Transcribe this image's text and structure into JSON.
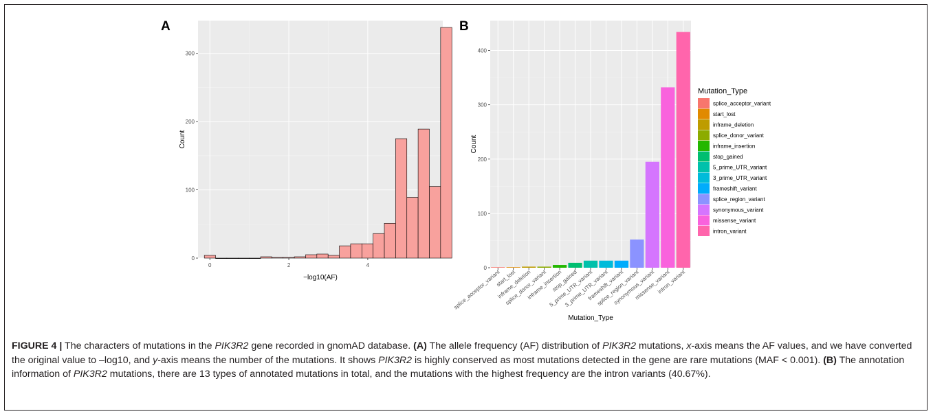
{
  "figure": {
    "panel_a_label": "A",
    "panel_b_label": "B"
  },
  "chart_data": [
    {
      "panel": "A",
      "type": "bar",
      "subtype": "histogram",
      "xlabel": "−log10(AF)",
      "ylabel": "Count",
      "xlim": [
        -0.3,
        5.9
      ],
      "ylim": [
        0,
        348
      ],
      "x_ticks": [
        0,
        2,
        4
      ],
      "y_ticks": [
        0,
        100,
        200,
        300
      ],
      "bin_width": 0.285,
      "bins": [
        {
          "x0": -0.14,
          "value": 4
        },
        {
          "x0": 0.145,
          "value": 0
        },
        {
          "x0": 0.43,
          "value": 0
        },
        {
          "x0": 0.715,
          "value": 0
        },
        {
          "x0": 1.0,
          "value": 0
        },
        {
          "x0": 1.285,
          "value": 2
        },
        {
          "x0": 1.57,
          "value": 1
        },
        {
          "x0": 1.855,
          "value": 1
        },
        {
          "x0": 2.14,
          "value": 2
        },
        {
          "x0": 2.425,
          "value": 5
        },
        {
          "x0": 2.71,
          "value": 6
        },
        {
          "x0": 2.995,
          "value": 4
        },
        {
          "x0": 3.28,
          "value": 18
        },
        {
          "x0": 3.565,
          "value": 21
        },
        {
          "x0": 3.85,
          "value": 21
        },
        {
          "x0": 4.135,
          "value": 36
        },
        {
          "x0": 4.42,
          "value": 51
        },
        {
          "x0": 4.705,
          "value": 175
        },
        {
          "x0": 4.99,
          "value": 89
        },
        {
          "x0": 5.275,
          "value": 189
        },
        {
          "x0": 5.56,
          "value": 105
        },
        {
          "x0": 5.845,
          "value": 338
        }
      ],
      "fill": "#f8a19d",
      "stroke": "#000000",
      "grid": true,
      "background": "#ebebeb"
    },
    {
      "panel": "B",
      "type": "bar",
      "xlabel": "Mutation_Type",
      "ylabel": "Count",
      "ylim": [
        0,
        455
      ],
      "y_ticks": [
        0,
        100,
        200,
        300,
        400
      ],
      "categories": [
        "splice_acceptor_variant",
        "start_lost",
        "inframe_deletion",
        "splice_donor_variant",
        "inframe_insertion",
        "stop_gained",
        "5_prime_UTR_variant",
        "3_prime_UTR_variant",
        "frameshift_variant",
        "splice_region_variant",
        "synonymous_variant",
        "missense_variant",
        "intron_variant"
      ],
      "values": [
        1,
        1,
        2,
        2,
        5,
        9,
        13,
        13,
        13,
        52,
        195,
        332,
        434
      ],
      "colors": [
        "#f8766d",
        "#e18a00",
        "#be9c00",
        "#8cab00",
        "#24b700",
        "#00be70",
        "#00c1ab",
        "#00bbda",
        "#00acfc",
        "#8b93ff",
        "#d575fe",
        "#f962dd",
        "#ff65ac"
      ],
      "legend": {
        "title": "Mutation_Type",
        "position": "right",
        "entries": [
          "splice_acceptor_variant",
          "start_lost",
          "inframe_deletion",
          "splice_donor_variant",
          "inframe_insertion",
          "stop_gained",
          "5_prime_UTR_variant",
          "3_prime_UTR_variant",
          "frameshift_variant",
          "splice_region_variant",
          "synonymous_variant",
          "missense_variant",
          "intron_variant"
        ]
      },
      "grid": true,
      "background": "#ebebeb"
    }
  ],
  "caption": {
    "label": "FIGURE 4 |",
    "t1": " The characters of mutations in the ",
    "gene1": "PIK3R2",
    "t2": " gene recorded in gnomAD database. ",
    "a_label": "(A)",
    "t3": " The allele frequency (AF) distribution of ",
    "gene2": "PIK3R2",
    "t4": " mutations, ",
    "x_var": "x",
    "t5": "-axis means the AF values, and we have converted the original value to –log10, and ",
    "y_var": "y",
    "t6": "-axis means the number of the mutations. It shows ",
    "gene3": "PIK3R2",
    "t7": " is highly conserved as most mutations detected in the gene are rare mutations (MAF < 0.001). ",
    "b_label": "(B)",
    "t8": " The annotation information of ",
    "gene4": "PIK3R2",
    "t9": " mutations, there are 13 types of annotated mutations in total, and the mutations with the highest frequency are the intron variants (40.67%)."
  }
}
